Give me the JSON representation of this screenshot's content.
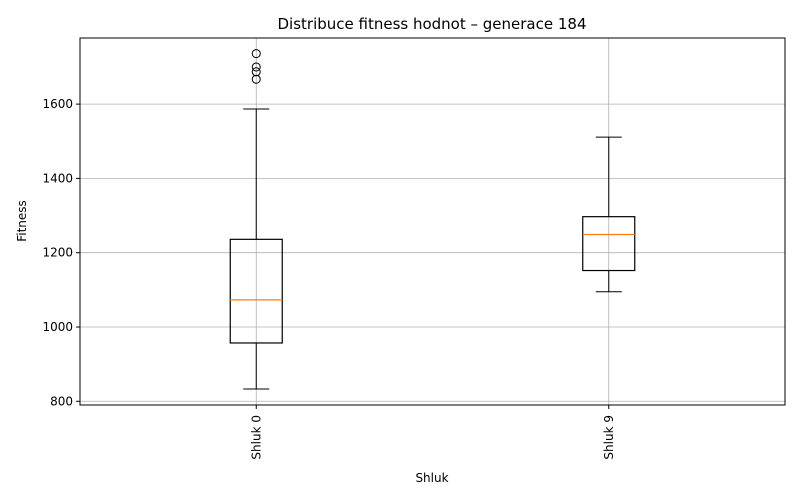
{
  "chart_data": {
    "type": "box",
    "title": "Distribuce fitness hodnot – generace 184",
    "xlabel": "Shluk",
    "ylabel": "Fitness",
    "ylim": [
      790,
      1778
    ],
    "yticks": [
      800,
      1000,
      1200,
      1400,
      1600
    ],
    "grid": true,
    "colors": {
      "box": "#000000",
      "median": "#ff7f0e",
      "grid": "#b0b0b0"
    },
    "categories": [
      "Shluk 0",
      "Shluk 9"
    ],
    "boxes": [
      {
        "label": "Shluk 0",
        "whisker_low": 833,
        "q1": 957,
        "median": 1073,
        "q3": 1236,
        "whisker_high": 1587,
        "outliers": [
          1667,
          1687,
          1700,
          1736
        ]
      },
      {
        "label": "Shluk 9",
        "whisker_low": 1095,
        "q1": 1152,
        "median": 1249,
        "q3": 1297,
        "whisker_high": 1511,
        "outliers": []
      }
    ]
  }
}
